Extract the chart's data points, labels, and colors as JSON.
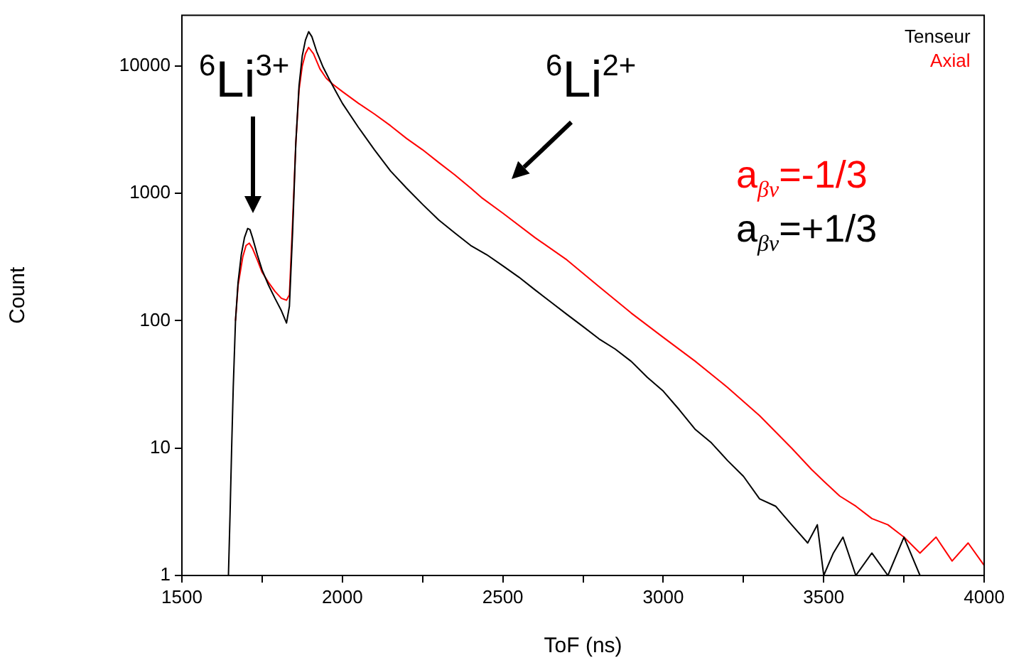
{
  "chart_data": {
    "type": "line",
    "xlabel": "ToF (ns)",
    "ylabel": "Count",
    "log": "y",
    "xlim": [
      1500,
      4000
    ],
    "ylim": [
      1,
      25000
    ],
    "xticks": [
      1500,
      {
        "value": 1750,
        "label": null
      },
      2000,
      {
        "value": 2250,
        "label": null
      },
      2500,
      {
        "value": 2750,
        "label": null
      },
      3000,
      {
        "value": 3250,
        "label": null
      },
      3500,
      {
        "value": 3750,
        "label": null
      },
      4000
    ],
    "yticks": [
      1,
      10,
      100,
      1000,
      10000
    ],
    "grid": false,
    "legend": "top right",
    "marker": "none",
    "line_style": "solid",
    "series": [
      {
        "name": "Tenseur",
        "color": "#000000",
        "x": [
          1645,
          1650,
          1655,
          1660,
          1667,
          1675,
          1685,
          1695,
          1705,
          1712,
          1720,
          1735,
          1750,
          1770,
          1790,
          1810,
          1826,
          1835,
          1845,
          1855,
          1865,
          1875,
          1885,
          1895,
          1905,
          1920,
          1940,
          1960,
          1980,
          2000,
          2050,
          2100,
          2150,
          2200,
          2250,
          2300,
          2350,
          2400,
          2450,
          2500,
          2550,
          2600,
          2650,
          2700,
          2750,
          2800,
          2850,
          2900,
          2950,
          3000,
          3050,
          3100,
          3150,
          3200,
          3250,
          3300,
          3350,
          3400,
          3450,
          3480,
          3500,
          3530,
          3560,
          3600,
          3650,
          3700,
          3750,
          3800,
          3850
        ],
        "values": [
          1,
          3,
          10,
          30,
          100,
          200,
          330,
          450,
          530,
          520,
          450,
          330,
          250,
          190,
          150,
          120,
          96,
          130,
          500,
          2500,
          7000,
          12000,
          16000,
          18600,
          17000,
          13000,
          9800,
          7800,
          6300,
          5100,
          3300,
          2200,
          1500,
          1100,
          820,
          620,
          490,
          390,
          330,
          270,
          220,
          175,
          140,
          112,
          90,
          72,
          60,
          48,
          36,
          28,
          20,
          14,
          11,
          8,
          6,
          4,
          3.5,
          2.5,
          1.8,
          2.5,
          1,
          1.5,
          2,
          1,
          1.5,
          1,
          2,
          1,
          1
        ]
      },
      {
        "name": "Axial",
        "color": "#ff0000",
        "x": [
          1667,
          1675,
          1690,
          1700,
          1710,
          1720,
          1735,
          1750,
          1770,
          1790,
          1810,
          1826,
          1835,
          1845,
          1855,
          1865,
          1875,
          1885,
          1895,
          1910,
          1930,
          1950,
          1970,
          2000,
          2050,
          2100,
          2150,
          2200,
          2250,
          2300,
          2350,
          2400,
          2433,
          2500,
          2600,
          2700,
          2800,
          2900,
          3000,
          3100,
          3200,
          3300,
          3400,
          3462,
          3500,
          3550,
          3600,
          3650,
          3700,
          3750,
          3800,
          3850,
          3900,
          3950,
          4000
        ],
        "values": [
          100,
          190,
          320,
          390,
          407,
          370,
          300,
          240,
          200,
          170,
          150,
          145,
          160,
          600,
          2500,
          6500,
          10000,
          12500,
          14000,
          12500,
          9500,
          8000,
          7200,
          6300,
          5100,
          4200,
          3400,
          2700,
          2200,
          1750,
          1400,
          1100,
          930,
          700,
          450,
          300,
          185,
          115,
          74,
          48,
          30,
          18,
          10,
          6.8,
          5.5,
          4.2,
          3.5,
          2.8,
          2.5,
          2,
          1.5,
          2,
          1.3,
          1.8,
          1.2
        ]
      }
    ],
    "annotations": [
      "$^{6}$Li$^{3+}$",
      "$^{6}$Li$^{2+}$",
      "a$_{βν}$=-1/3",
      "a$_{βν}$=+1/3"
    ]
  }
}
